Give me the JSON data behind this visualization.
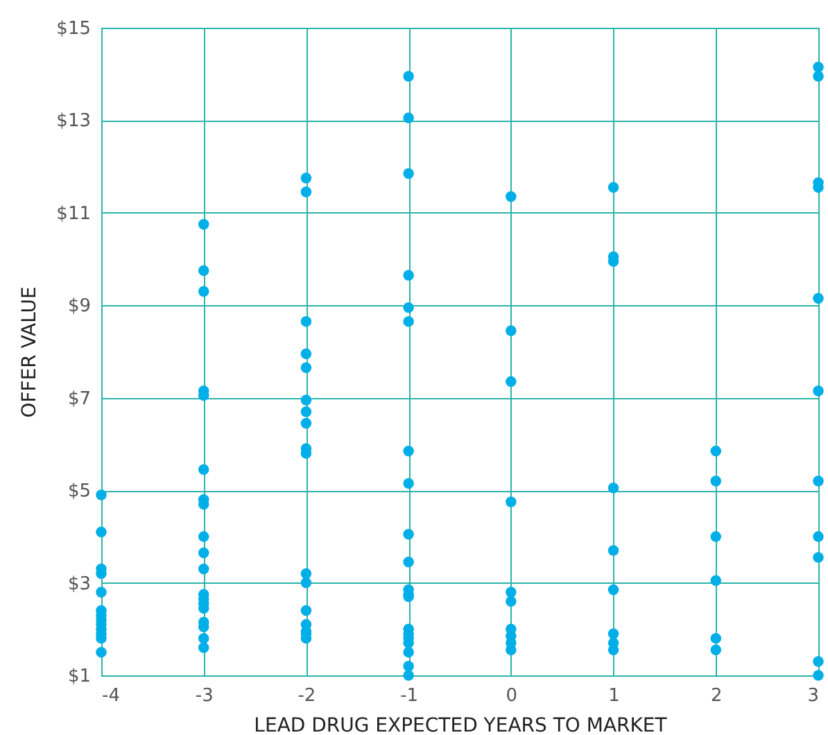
{
  "chart_data": {
    "type": "scatter",
    "xlabel": "LEAD DRUG EXPECTED YEARS TO MARKET",
    "ylabel": "OFFER VALUE",
    "grid": true,
    "marker": "circle",
    "xlim": [
      -4,
      3
    ],
    "xticks": [
      -4,
      -3,
      -2,
      -1,
      0,
      1,
      2,
      3
    ],
    "ylim": [
      1,
      15
    ],
    "yticks": [
      {
        "value": 1,
        "label": "$1"
      },
      {
        "value": 3,
        "label": "$3"
      },
      {
        "value": 5,
        "label": "$5"
      },
      {
        "value": 7,
        "label": "$7"
      },
      {
        "value": 9,
        "label": "$9"
      },
      {
        "value": 11,
        "label": "$11"
      },
      {
        "value": 13,
        "label": "$13"
      },
      {
        "value": 15,
        "label": "$15"
      }
    ],
    "series": [
      {
        "color": "#00aee8",
        "x": [
          -4,
          -4,
          -4,
          -4,
          -4,
          -4,
          -4,
          -4,
          -4,
          -4,
          -4,
          -4,
          -4,
          -3,
          -3,
          -3,
          -3,
          -3,
          -3,
          -3,
          -3,
          -3,
          -3,
          -3,
          -3,
          -3,
          -3,
          -3,
          -3,
          -3,
          -3,
          -3,
          -2,
          -2,
          -2,
          -2,
          -2,
          -2,
          -2,
          -2,
          -2,
          -2,
          -2,
          -2,
          -2,
          -2,
          -2,
          -2,
          -2,
          -1,
          -1,
          -1,
          -1,
          -1,
          -1,
          -1,
          -1,
          -1,
          -1,
          -1,
          -1,
          -1,
          -1,
          -1,
          -1,
          -1,
          -1,
          -1,
          -1,
          0,
          0,
          0,
          0,
          0,
          0,
          0,
          0,
          0,
          0,
          1,
          1,
          1,
          1,
          1,
          1,
          1,
          1,
          1,
          2,
          2,
          2,
          2,
          2,
          2,
          3,
          3,
          3,
          3,
          3,
          3,
          3,
          3,
          3,
          3,
          3
        ],
        "values": [
          4.9,
          4.1,
          3.3,
          3.2,
          2.8,
          2.4,
          2.3,
          2.2,
          2.1,
          2.0,
          1.9,
          1.8,
          1.5,
          10.75,
          9.75,
          9.3,
          7.15,
          7.05,
          5.45,
          4.8,
          4.7,
          4.0,
          3.65,
          3.3,
          2.75,
          2.65,
          2.55,
          2.45,
          2.15,
          2.05,
          1.8,
          1.6,
          11.75,
          11.45,
          8.65,
          7.95,
          7.65,
          6.95,
          6.7,
          6.45,
          5.9,
          5.8,
          3.2,
          3.0,
          2.4,
          2.1,
          1.95,
          1.8,
          1.9,
          13.95,
          13.05,
          11.85,
          9.65,
          8.95,
          8.65,
          5.85,
          5.15,
          4.05,
          3.45,
          2.85,
          2.75,
          2.7,
          2.0,
          1.9,
          1.7,
          1.5,
          1.2,
          1.0,
          1.8,
          11.35,
          8.45,
          7.35,
          4.75,
          2.8,
          2.6,
          2.0,
          1.85,
          1.7,
          1.55,
          11.55,
          10.05,
          9.95,
          5.05,
          3.7,
          2.85,
          1.9,
          1.7,
          1.55,
          5.85,
          5.2,
          4.0,
          3.05,
          1.8,
          1.55,
          14.15,
          13.95,
          11.65,
          11.55,
          9.15,
          7.15,
          5.2,
          4.0,
          3.55,
          1.3,
          1.0
        ]
      }
    ]
  }
}
